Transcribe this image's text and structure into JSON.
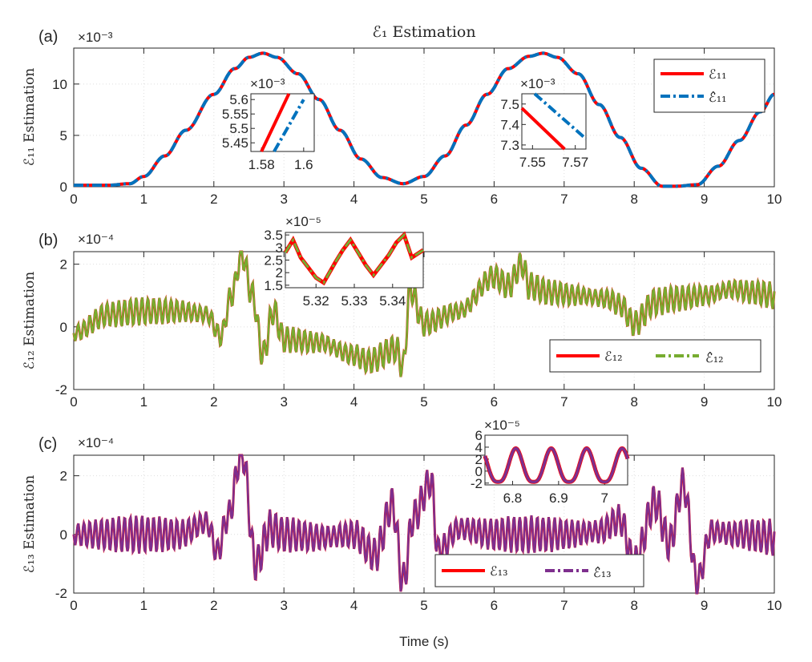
{
  "figure": {
    "title": "ℰ₁ Estimation",
    "xlabel": "Time (s)"
  },
  "chart_data": [
    {
      "type": "line",
      "panel_label": "(a)",
      "ylabel": "ℰ₁₁ Estimation",
      "exponent": "×10⁻³",
      "xlim": [
        0,
        10
      ],
      "ylim": [
        0,
        13.5
      ],
      "xticks": [
        0,
        1,
        2,
        3,
        4,
        5,
        6,
        7,
        8,
        9,
        10
      ],
      "yticks": [
        0,
        5,
        10
      ],
      "grid": true,
      "legend_position": "top-right",
      "series": [
        {
          "name": "ℰ₁₁",
          "color": "#ff0000",
          "style": "solid"
        },
        {
          "name": "ℰ̂₁₁",
          "color": "#0072bd",
          "style": "dash-dot"
        }
      ],
      "x": [
        0,
        0.5,
        0.8,
        1.0,
        1.3,
        1.6,
        2.0,
        2.3,
        2.5,
        2.7,
        2.9,
        3.2,
        3.5,
        3.8,
        4.1,
        4.4,
        4.7,
        5.0,
        5.3,
        5.6,
        5.9,
        6.2,
        6.5,
        6.7,
        6.9,
        7.2,
        7.5,
        7.8,
        8.1,
        8.4,
        8.6,
        8.9,
        9.2,
        9.5,
        9.8,
        10.0
      ],
      "y": [
        0.15,
        0.15,
        0.3,
        1.0,
        3.0,
        5.5,
        9.0,
        11.5,
        12.6,
        13.0,
        12.6,
        11.0,
        8.5,
        5.5,
        2.7,
        0.9,
        0.3,
        1.0,
        3.0,
        6.0,
        9.0,
        11.5,
        12.7,
        13.0,
        12.6,
        11.0,
        8.0,
        4.8,
        1.8,
        0.05,
        0.05,
        0.2,
        2.0,
        4.5,
        7.3,
        9.0
      ],
      "insets": [
        {
          "xlim": [
            1.575,
            1.605
          ],
          "ylim": [
            5.42,
            5.62
          ],
          "xticks": [
            "1.58",
            "1.6"
          ],
          "yticks": [
            "5.45",
            "5.5",
            "5.55",
            "5.6"
          ],
          "exponent": "×10⁻³",
          "lines": [
            [
              [
                1.58,
                5.42
              ],
              [
                1.593,
                5.62
              ]
            ],
            [
              [
                1.586,
                5.42
              ],
              [
                1.6,
                5.6
              ]
            ]
          ]
        },
        {
          "xlim": [
            7.545,
            7.575
          ],
          "ylim": [
            7.28,
            7.55
          ],
          "xticks": [
            "7.55",
            "7.57"
          ],
          "yticks": [
            "7.3",
            "7.4",
            "7.5"
          ],
          "exponent": "×10⁻³",
          "lines": [
            [
              [
                7.545,
                7.48
              ],
              [
                7.565,
                7.28
              ]
            ],
            [
              [
                7.551,
                7.55
              ],
              [
                7.575,
                7.33
              ]
            ]
          ]
        }
      ]
    },
    {
      "type": "line",
      "panel_label": "(b)",
      "ylabel": "ℰ₁₂ Estimation",
      "exponent": "×10⁻⁴",
      "xlim": [
        0,
        10
      ],
      "ylim": [
        -2,
        2.4
      ],
      "xticks": [
        0,
        1,
        2,
        3,
        4,
        5,
        6,
        7,
        8,
        9,
        10
      ],
      "yticks": [
        -2,
        0,
        2
      ],
      "grid": true,
      "legend_position": "bottom-right",
      "series": [
        {
          "name": "ℰ₁₂",
          "color": "#ff0000",
          "style": "solid"
        },
        {
          "name": "ℰ̂₁₂",
          "color": "#77ac30",
          "style": "dash-dot"
        }
      ],
      "x": [
        0,
        0.5,
        1.0,
        1.5,
        1.9,
        2.1,
        2.25,
        2.4,
        2.55,
        2.7,
        2.85,
        3.0,
        3.5,
        4.0,
        4.2,
        4.6,
        4.7,
        4.8,
        5.0,
        5.5,
        6.0,
        6.2,
        6.4,
        6.5,
        6.8,
        7.2,
        7.6,
        7.8,
        8.0,
        8.3,
        8.6,
        9.0,
        9.4,
        9.7,
        10.0
      ],
      "y": [
        -0.2,
        0.4,
        0.5,
        0.5,
        0.4,
        -0.3,
        1.0,
        2.3,
        1.0,
        -0.9,
        0.5,
        -0.4,
        -0.5,
        -0.9,
        -1.1,
        -0.7,
        -1.3,
        1.2,
        0.1,
        0.5,
        1.6,
        1.3,
        2.0,
        1.3,
        1.1,
        1.0,
        0.9,
        0.7,
        0.1,
        0.8,
        0.9,
        1.0,
        1.2,
        1.1,
        1.0
      ],
      "noise_amplitude": 0.45,
      "insets": [
        {
          "xlim": [
            5.312,
            5.348
          ],
          "ylim": [
            1.4,
            3.6
          ],
          "xticks": [
            "5.32",
            "5.33",
            "5.34"
          ],
          "yticks": [
            "1.5",
            "2",
            "2.5",
            "3",
            "3.5"
          ],
          "exponent": "×10⁻⁵",
          "line": [
            [
              5.312,
              2.8
            ],
            [
              5.314,
              3.3
            ],
            [
              5.316,
              2.6
            ],
            [
              5.318,
              2.2
            ],
            [
              5.32,
              1.8
            ],
            [
              5.322,
              1.6
            ],
            [
              5.325,
              2.4
            ],
            [
              5.327,
              2.9
            ],
            [
              5.329,
              3.3
            ],
            [
              5.331,
              2.8
            ],
            [
              5.333,
              2.3
            ],
            [
              5.335,
              1.9
            ],
            [
              5.337,
              2.3
            ],
            [
              5.339,
              2.7
            ],
            [
              5.341,
              3.2
            ],
            [
              5.343,
              3.5
            ],
            [
              5.345,
              2.6
            ],
            [
              5.348,
              2.9
            ]
          ]
        }
      ]
    },
    {
      "type": "line",
      "panel_label": "(c)",
      "ylabel": "ℰ₁₃ Estimation",
      "exponent": "×10⁻⁴",
      "xlim": [
        0,
        10
      ],
      "ylim": [
        -2,
        2.7
      ],
      "xticks": [
        0,
        1,
        2,
        3,
        4,
        5,
        6,
        7,
        8,
        9,
        10
      ],
      "yticks": [
        -2,
        0,
        2
      ],
      "grid": true,
      "legend_position": "bottom-center",
      "series": [
        {
          "name": "ℰ₁₃",
          "color": "#ff0000",
          "style": "solid"
        },
        {
          "name": "ℰ̂₁₃",
          "color": "#7e2f8e",
          "style": "dash-dot"
        }
      ],
      "x": [
        0,
        0.5,
        1.0,
        1.5,
        1.9,
        2.05,
        2.2,
        2.4,
        2.6,
        2.8,
        3.0,
        3.5,
        4.0,
        4.3,
        4.55,
        4.7,
        4.85,
        5.1,
        5.2,
        5.5,
        6.0,
        6.5,
        7.0,
        7.5,
        7.8,
        8.0,
        8.3,
        8.5,
        8.7,
        8.9,
        9.1,
        9.5,
        10.0
      ],
      "y": [
        0,
        0,
        0,
        0,
        0.4,
        -0.6,
        0.6,
        2.8,
        -1.0,
        0.2,
        0,
        -0.1,
        0,
        -0.7,
        1.0,
        -1.6,
        0.6,
        1.8,
        -0.6,
        0.2,
        0,
        0,
        0,
        0.1,
        0.5,
        -1.0,
        1.1,
        -0.3,
        1.7,
        -1.6,
        0.1,
        0,
        -0.1
      ],
      "noise_amplitude": 0.65,
      "insets": [
        {
          "xlim": [
            6.74,
            7.05
          ],
          "ylim": [
            -2.3,
            6
          ],
          "xticks": [
            "6.8",
            "6.9",
            "7"
          ],
          "yticks": [
            "-2",
            "0",
            "2",
            "4",
            "6"
          ],
          "exponent": "×10⁻⁵"
        }
      ]
    }
  ]
}
